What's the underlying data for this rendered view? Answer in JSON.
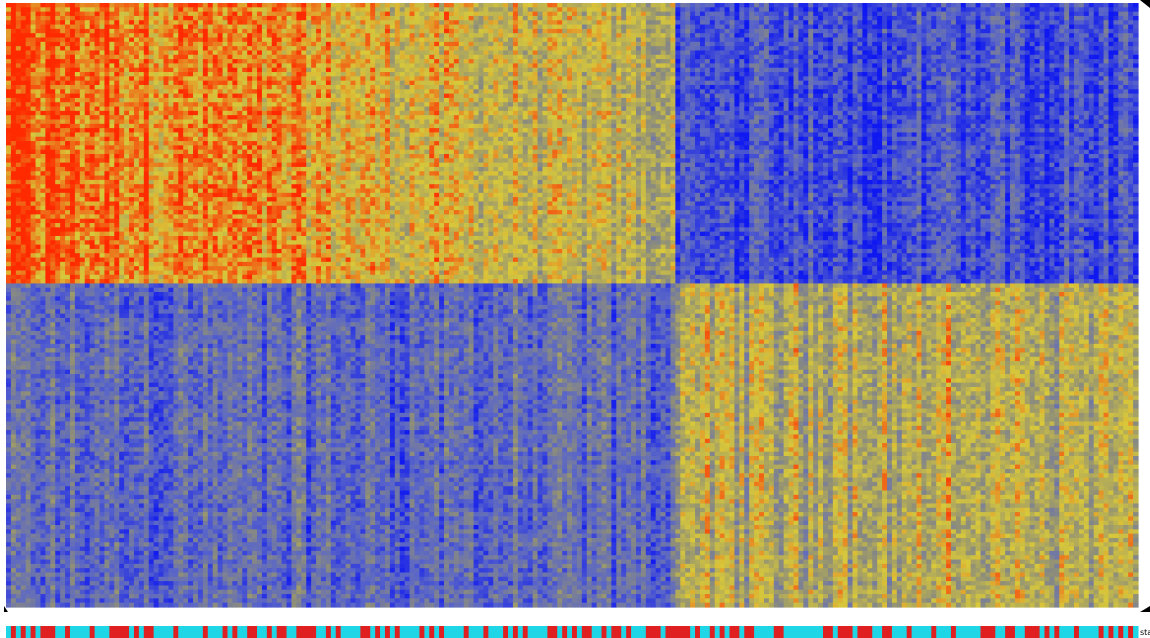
{
  "chart_data": {
    "type": "heatmap",
    "title": "",
    "xlabel": "",
    "ylabel": "",
    "legend": "none",
    "color_scale": {
      "low": "#0f18f0",
      "mid_low": "#5a66c8",
      "mid": "#8f8f78",
      "mid_high": "#d8c83a",
      "high": "#ff2a00"
    },
    "row_clusters": [
      {
        "name": "",
        "row_fraction": 0.465
      },
      {
        "name": "",
        "row_fraction": 0.535
      }
    ],
    "column_clusters": [
      {
        "name": "",
        "col_fraction": 0.593
      },
      {
        "name": "",
        "col_fraction": 0.407
      }
    ],
    "block_pattern": {
      "top_left": "high",
      "top_right": "low",
      "bottom_left": "low",
      "bottom_right": "mid_high"
    },
    "annotation_track": {
      "label": "sta",
      "colors": {
        "a": "#e02020",
        "b": "#1ed6e6"
      }
    },
    "num_columns": 230,
    "num_rows": 140
  }
}
